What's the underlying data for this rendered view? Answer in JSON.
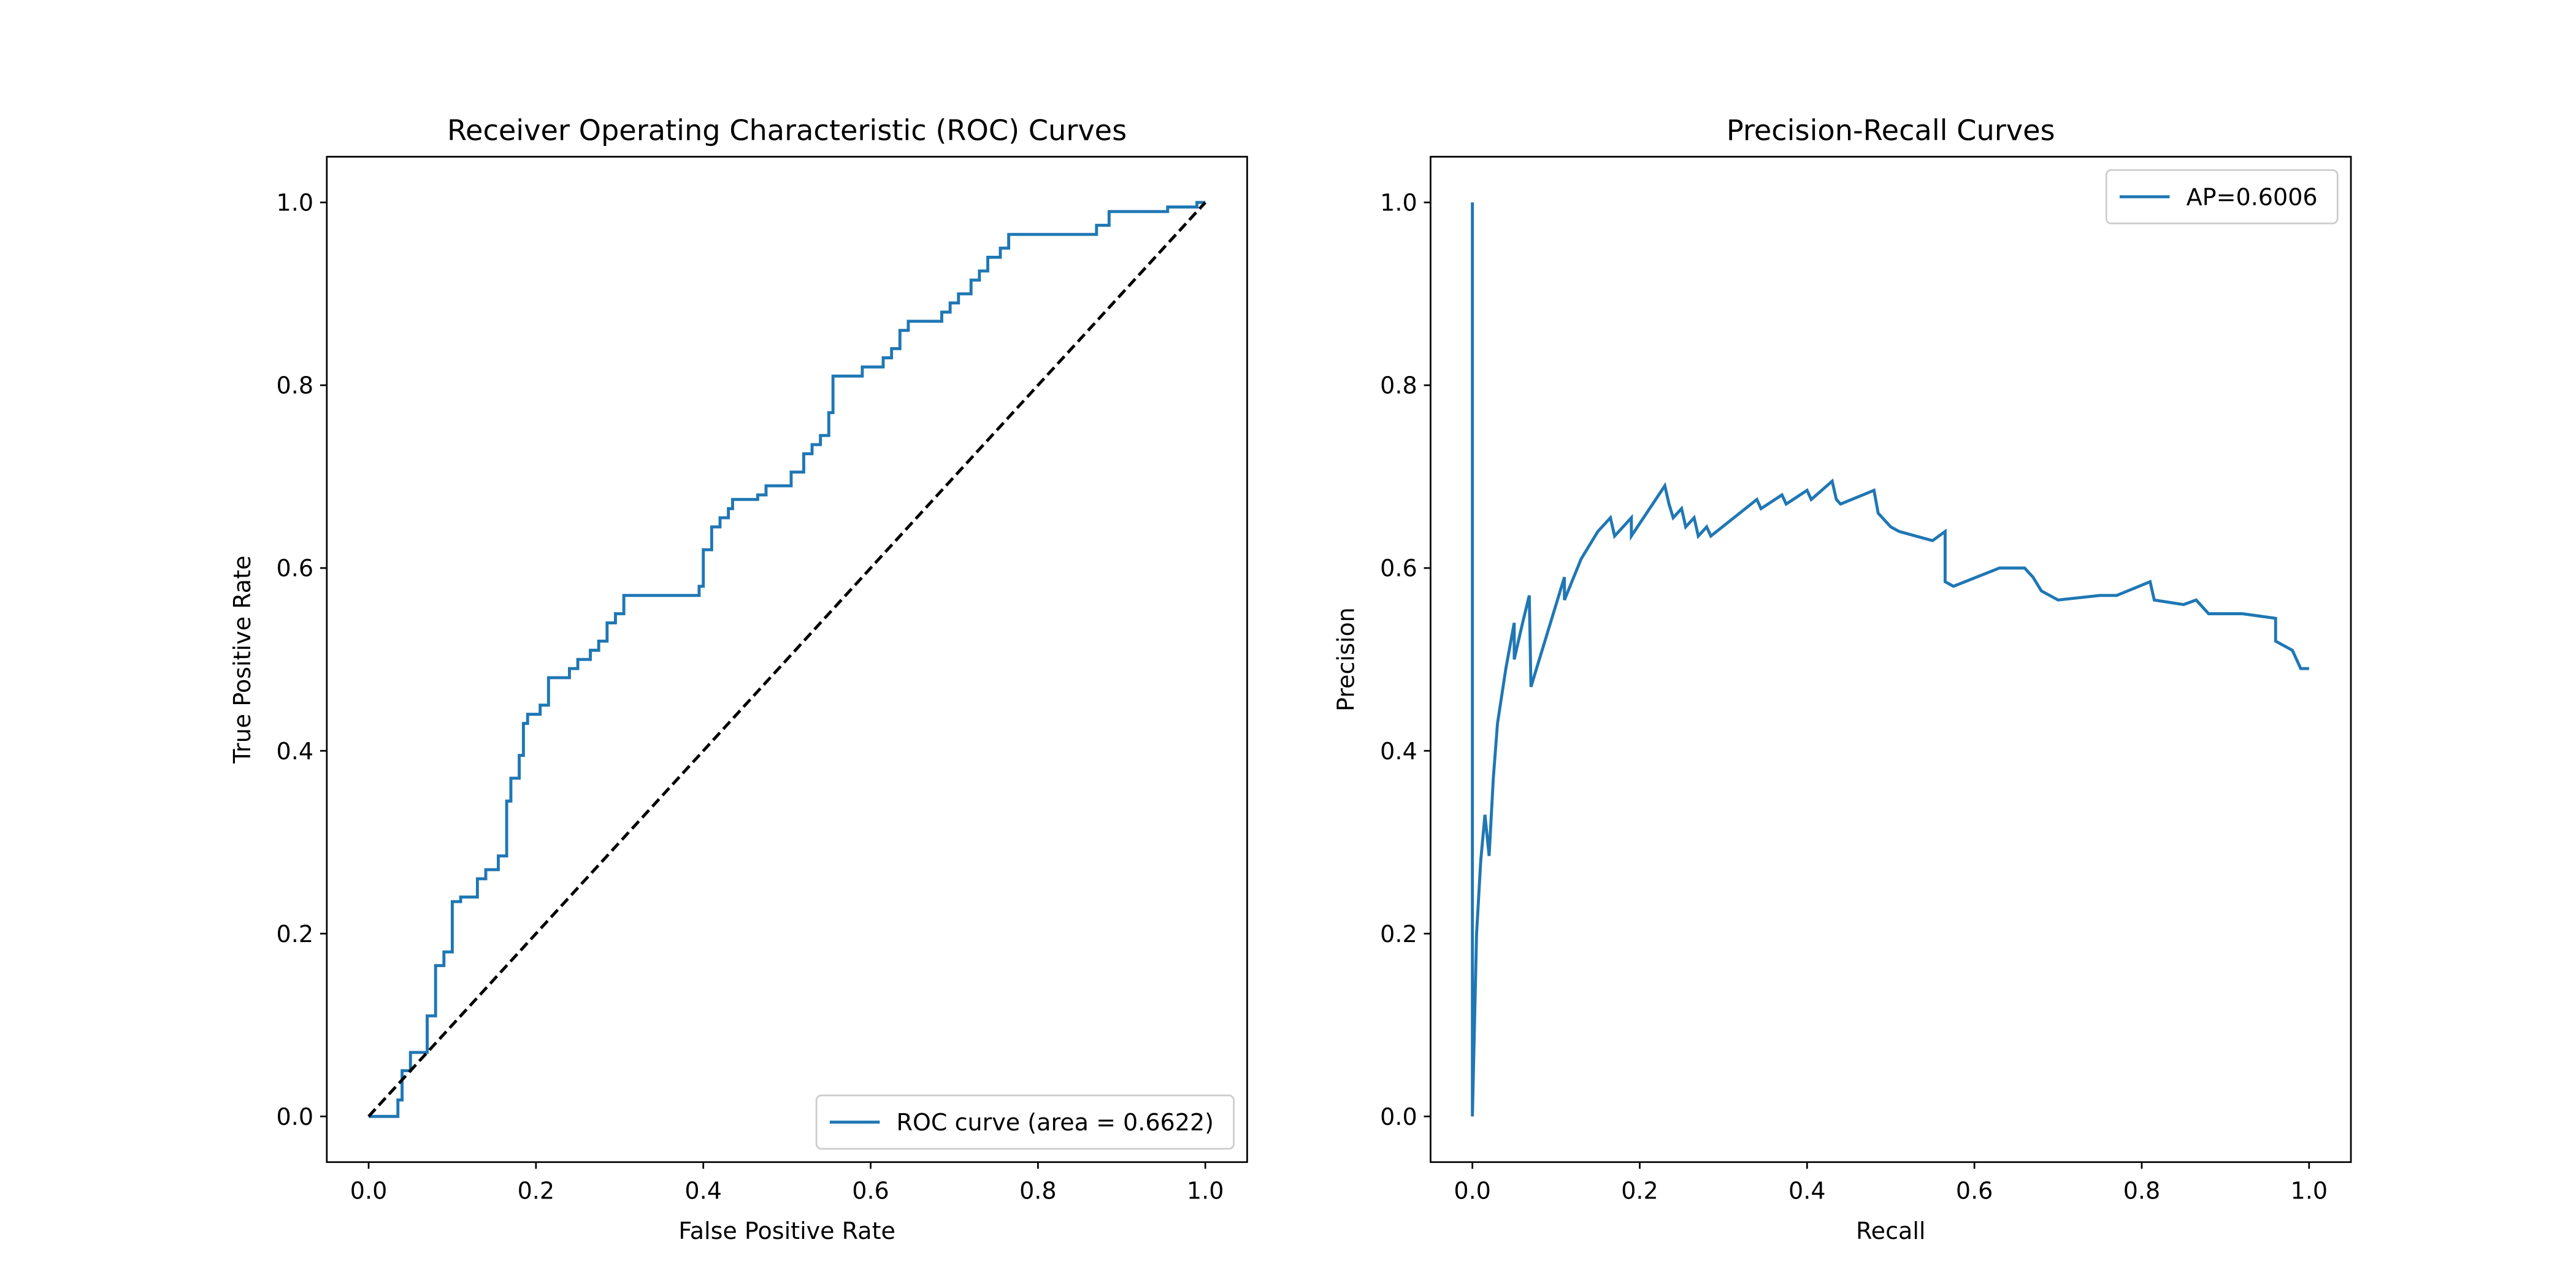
{
  "chart_data": [
    {
      "type": "line",
      "title": "Receiver Operating Characteristic (ROC) Curves",
      "xlabel": "False Positive Rate",
      "ylabel": "True Positive Rate",
      "xlim": [
        -0.05,
        1.05
      ],
      "ylim": [
        -0.05,
        1.05
      ],
      "xticks": [
        {
          "value": 0,
          "label": "0.0"
        },
        0.2,
        0.4,
        0.6,
        0.8,
        {
          "value": 1,
          "label": "1.0"
        }
      ],
      "yticks": [
        {
          "value": 0,
          "label": "0.0"
        },
        0.2,
        0.4,
        0.6,
        0.8,
        {
          "value": 1,
          "label": "1.0"
        }
      ],
      "legend": "lower right",
      "series": [
        {
          "name": "ROC curve (area = 0.6622)",
          "color": "#1f77b4",
          "x": [
            0,
            0.035,
            0.035,
            0.04,
            0.04,
            0.05,
            0.05,
            0.07,
            0.07,
            0.08,
            0.08,
            0.09,
            0.09,
            0.1,
            0.1,
            0.11,
            0.11,
            0.13,
            0.13,
            0.14,
            0.14,
            0.155,
            0.155,
            0.165,
            0.165,
            0.17,
            0.17,
            0.18,
            0.18,
            0.185,
            0.185,
            0.19,
            0.19,
            0.205,
            0.205,
            0.215,
            0.215,
            0.24,
            0.24,
            0.25,
            0.25,
            0.265,
            0.265,
            0.275,
            0.275,
            0.285,
            0.285,
            0.295,
            0.295,
            0.305,
            0.305,
            0.395,
            0.395,
            0.4,
            0.4,
            0.41,
            0.41,
            0.42,
            0.42,
            0.43,
            0.43,
            0.435,
            0.435,
            0.465,
            0.465,
            0.475,
            0.475,
            0.505,
            0.505,
            0.52,
            0.52,
            0.53,
            0.53,
            0.54,
            0.54,
            0.55,
            0.55,
            0.555,
            0.555,
            0.59,
            0.59,
            0.615,
            0.615,
            0.625,
            0.625,
            0.635,
            0.635,
            0.645,
            0.645,
            0.685,
            0.685,
            0.695,
            0.695,
            0.705,
            0.705,
            0.72,
            0.72,
            0.73,
            0.73,
            0.74,
            0.74,
            0.755,
            0.755,
            0.765,
            0.765,
            0.87,
            0.87,
            0.885,
            0.885,
            0.955,
            0.955,
            0.99,
            0.99,
            1
          ],
          "values": [
            0,
            0,
            0.018,
            0.018,
            0.05,
            0.05,
            0.07,
            0.07,
            0.11,
            0.11,
            0.165,
            0.165,
            0.18,
            0.18,
            0.235,
            0.235,
            0.24,
            0.24,
            0.26,
            0.26,
            0.27,
            0.27,
            0.285,
            0.285,
            0.345,
            0.345,
            0.37,
            0.37,
            0.395,
            0.395,
            0.43,
            0.43,
            0.44,
            0.44,
            0.45,
            0.45,
            0.48,
            0.48,
            0.49,
            0.49,
            0.5,
            0.5,
            0.51,
            0.51,
            0.52,
            0.52,
            0.54,
            0.54,
            0.55,
            0.55,
            0.57,
            0.57,
            0.58,
            0.58,
            0.62,
            0.62,
            0.645,
            0.645,
            0.655,
            0.655,
            0.665,
            0.665,
            0.675,
            0.675,
            0.68,
            0.68,
            0.69,
            0.69,
            0.705,
            0.705,
            0.725,
            0.725,
            0.735,
            0.735,
            0.745,
            0.745,
            0.77,
            0.77,
            0.81,
            0.81,
            0.82,
            0.82,
            0.83,
            0.83,
            0.84,
            0.84,
            0.86,
            0.86,
            0.87,
            0.87,
            0.88,
            0.88,
            0.89,
            0.89,
            0.9,
            0.9,
            0.915,
            0.915,
            0.925,
            0.925,
            0.94,
            0.94,
            0.95,
            0.95,
            0.965,
            0.965,
            0.975,
            0.975,
            0.99,
            0.99,
            0.995,
            0.995,
            1,
            1
          ]
        },
        {
          "color": "#000000",
          "dashed": true,
          "x": [
            0,
            1
          ],
          "values": [
            0,
            1
          ]
        }
      ]
    },
    {
      "type": "line",
      "title": "Precision-Recall Curves",
      "xlabel": "Recall",
      "ylabel": "Precision",
      "xlim": [
        -0.05,
        1.05
      ],
      "ylim": [
        -0.05,
        1.05
      ],
      "xticks": [
        {
          "value": 0,
          "label": "0.0"
        },
        0.2,
        0.4,
        0.6,
        0.8,
        {
          "value": 1,
          "label": "1.0"
        }
      ],
      "yticks": [
        {
          "value": 0,
          "label": "0.0"
        },
        0.2,
        0.4,
        0.6,
        0.8,
        {
          "value": 1,
          "label": "1.0"
        }
      ],
      "legend": "upper right",
      "series": [
        {
          "name": "AP=0.6006",
          "color": "#1f77b4",
          "x": [
            0,
            0,
            0.005,
            0.01,
            0.015,
            0.02,
            0.025,
            0.03,
            0.04,
            0.05,
            0.05,
            0.06,
            0.068,
            0.07,
            0.09,
            0.11,
            0.11,
            0.13,
            0.15,
            0.165,
            0.17,
            0.19,
            0.19,
            0.23,
            0.235,
            0.24,
            0.25,
            0.255,
            0.265,
            0.27,
            0.28,
            0.285,
            0.34,
            0.345,
            0.37,
            0.375,
            0.4,
            0.405,
            0.43,
            0.435,
            0.44,
            0.48,
            0.485,
            0.49,
            0.5,
            0.51,
            0.53,
            0.55,
            0.565,
            0.565,
            0.575,
            0.63,
            0.66,
            0.67,
            0.68,
            0.69,
            0.7,
            0.75,
            0.77,
            0.81,
            0.815,
            0.85,
            0.865,
            0.88,
            0.92,
            0.96,
            0.96,
            0.98,
            0.985,
            0.99,
            1
          ],
          "values": [
            1,
            0,
            0.2,
            0.28,
            0.33,
            0.285,
            0.37,
            0.43,
            0.49,
            0.54,
            0.5,
            0.54,
            0.57,
            0.47,
            0.53,
            0.59,
            0.565,
            0.61,
            0.64,
            0.655,
            0.635,
            0.655,
            0.635,
            0.69,
            0.67,
            0.655,
            0.665,
            0.645,
            0.655,
            0.635,
            0.645,
            0.635,
            0.675,
            0.665,
            0.68,
            0.67,
            0.685,
            0.675,
            0.695,
            0.675,
            0.67,
            0.685,
            0.66,
            0.655,
            0.645,
            0.64,
            0.635,
            0.63,
            0.64,
            0.585,
            0.58,
            0.6,
            0.6,
            0.59,
            0.575,
            0.57,
            0.565,
            0.57,
            0.57,
            0.585,
            0.565,
            0.56,
            0.565,
            0.55,
            0.55,
            0.545,
            0.52,
            0.51,
            0.5,
            0.49,
            0.49
          ]
        }
      ]
    }
  ]
}
